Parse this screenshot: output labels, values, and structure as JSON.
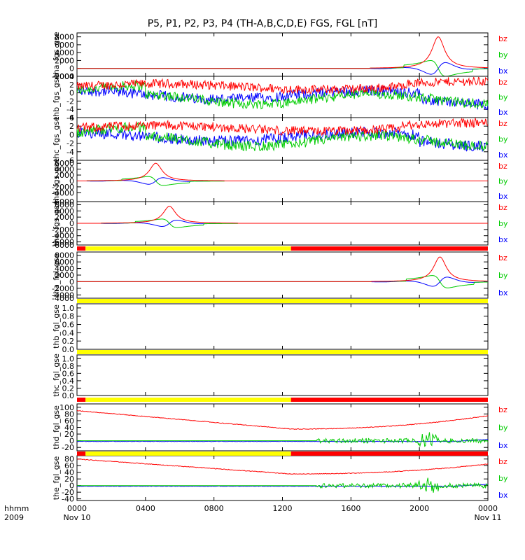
{
  "chart_data": {
    "type": "line",
    "title": "P5, P1, P2, P3, P4 (TH-A,B,C,D,E) FGS, FGL [nT]",
    "x_axis": {
      "ticks": [
        "0000",
        "0400",
        "0800",
        "1200",
        "1600",
        "2000",
        "0000"
      ],
      "tick_hours": [
        0,
        4,
        8,
        12,
        16,
        20,
        24
      ],
      "start_date": "Nov 10",
      "end_date": "Nov 11",
      "corner_label_1": "hhmm",
      "corner_label_2": "2009"
    },
    "legend": [
      "bz",
      "by",
      "bx"
    ],
    "colors": {
      "bz": "#ff0000",
      "by": "#00cc00",
      "bx": "#0000ff"
    },
    "panels": [
      {
        "ylabel": "tha_fgs_gse",
        "ylim": [
          -2000,
          9000
        ],
        "ticks": [
          "8000",
          "6000",
          "4000",
          "2000",
          "0",
          "-2000"
        ],
        "tick_values": [
          8000,
          6000,
          4000,
          2000,
          0,
          -2000
        ],
        "bottom_tick": "-2000",
        "kind": "spike",
        "center_hour": 21.1,
        "peak": 8000
      },
      {
        "ylabel": "thb_fgs_gse",
        "ylim": [
          -6,
          4
        ],
        "ticks": [
          "4",
          "2",
          "0",
          "-2",
          "-4"
        ],
        "tick_values": [
          4,
          2,
          0,
          -2,
          -4
        ],
        "bottom_tick": "-6",
        "kind": "noisy"
      },
      {
        "ylabel": "thc_fgs_gse",
        "ylim": [
          -6,
          4
        ],
        "ticks": [
          "6",
          "4",
          "2",
          "0",
          "-2",
          "-4"
        ],
        "tick_values": [
          6,
          4,
          2,
          0,
          -2,
          -4
        ],
        "bottom_tick": "-6",
        "kind": "noisy"
      },
      {
        "ylabel": "thd_fgs_gse",
        "ylim": [
          -7000,
          7000
        ],
        "ticks": [
          "6000",
          "4000",
          "2000",
          "0",
          "-2000",
          "-4000"
        ],
        "tick_values": [
          6000,
          4000,
          2000,
          0,
          -2000,
          -4000
        ],
        "bottom_tick": "-6000",
        "kind": "spike",
        "center_hour": 4.6,
        "peak": 6000
      },
      {
        "ylabel": "the_fgs_gse",
        "ylim": [
          -7000,
          7000
        ],
        "ticks": [
          "6000",
          "4000",
          "2000",
          "0",
          "-2000",
          "-4000",
          "-6000"
        ],
        "tick_values": [
          6000,
          4000,
          2000,
          0,
          -2000,
          -4000,
          -6000
        ],
        "bottom_tick": "-6000",
        "kind": "spike",
        "center_hour": 5.4,
        "peak": 5500
      },
      {
        "ylabel": "tha_fgl_gse",
        "ylim": [
          -5000,
          9000
        ],
        "ticks": [
          "8000",
          "6000",
          "4000",
          "2000",
          "0",
          "-2000",
          "-4000"
        ],
        "tick_values": [
          8000,
          6000,
          4000,
          2000,
          0,
          -2000,
          -4000
        ],
        "bottom_tick": "-4000",
        "kind": "spike",
        "center_hour": 21.2,
        "peak": 7500
      },
      {
        "ylabel": "thb_fgl_gse",
        "ylim": [
          0,
          1.1
        ],
        "ticks": [
          "1.0",
          "0.8",
          "0.6",
          "0.4",
          "0.2",
          "0.0"
        ],
        "tick_values": [
          1.0,
          0.8,
          0.6,
          0.4,
          0.2,
          0.0
        ],
        "bottom_tick": "",
        "kind": "empty"
      },
      {
        "ylabel": "thc_fgl_gse",
        "ylim": [
          0,
          1.1
        ],
        "ticks": [
          "1.0",
          "0.8",
          "0.6",
          "0.4",
          "0.2",
          "0.0"
        ],
        "tick_values": [
          1.0,
          0.8,
          0.6,
          0.4,
          0.2,
          0.0
        ],
        "bottom_tick": "",
        "kind": "empty"
      },
      {
        "ylabel": "thd_fgl_gse",
        "ylim": [
          -30,
          110
        ],
        "ticks": [
          "100",
          "80",
          "60",
          "40",
          "20",
          "0",
          "-20"
        ],
        "tick_values": [
          100,
          80,
          60,
          40,
          20,
          0,
          -20
        ],
        "bottom_tick": "",
        "kind": "trend",
        "bz_start": 90,
        "bz_min": 35,
        "bz_end": 75
      },
      {
        "ylabel": "the_fgl_gse",
        "ylim": [
          -45,
          90
        ],
        "ticks": [
          "80",
          "60",
          "40",
          "20",
          "0",
          "-20",
          "-40"
        ],
        "tick_values": [
          80,
          60,
          40,
          20,
          0,
          -20,
          -40
        ],
        "bottom_tick": "",
        "kind": "trend",
        "bz_start": 80,
        "bz_min": 35,
        "bz_end": 65
      }
    ],
    "mode_bars": [
      {
        "after_panel": 4,
        "segments": [
          [
            0,
            0.5,
            "red"
          ],
          [
            0.5,
            12.5,
            "yellow"
          ],
          [
            12.5,
            24,
            "red"
          ]
        ]
      },
      {
        "after_panel": 5,
        "segments": [
          [
            0,
            24,
            "yellow"
          ]
        ]
      },
      {
        "after_panel": 6,
        "segments": [
          [
            0,
            24,
            "yellow"
          ]
        ]
      },
      {
        "after_panel": 7,
        "segments": [
          [
            0,
            0.5,
            "red"
          ],
          [
            0.5,
            12.5,
            "yellow"
          ],
          [
            12.5,
            24,
            "red"
          ]
        ]
      },
      {
        "after_panel": 8,
        "segments": [
          [
            0,
            0.5,
            "red"
          ],
          [
            0.5,
            12.5,
            "yellow"
          ],
          [
            12.5,
            24,
            "red"
          ]
        ]
      }
    ]
  }
}
